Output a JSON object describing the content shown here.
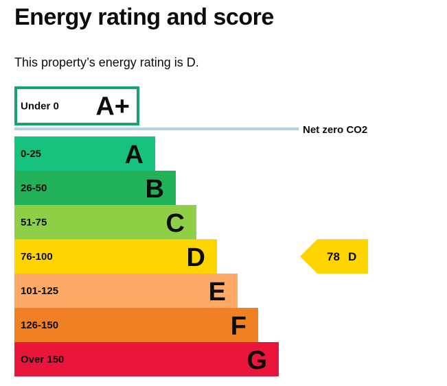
{
  "header": {
    "title": "Energy rating and score",
    "summary": "This property’s energy rating is D."
  },
  "chart_data": {
    "type": "bar",
    "title": "Energy rating and score",
    "bands": [
      {
        "range": "Under 0",
        "letter": "A+",
        "color": "#17a370",
        "outlined": true
      },
      {
        "range": "0-25",
        "letter": "A",
        "color": "#17c27e"
      },
      {
        "range": "26-50",
        "letter": "B",
        "color": "#22b25a"
      },
      {
        "range": "51-75",
        "letter": "C",
        "color": "#8fcf48"
      },
      {
        "range": "76-100",
        "letter": "D",
        "color": "#ffd500"
      },
      {
        "range": "101-125",
        "letter": "E",
        "color": "#fcaa65"
      },
      {
        "range": "126-150",
        "letter": "F",
        "color": "#ef8023"
      },
      {
        "range": "Over 150",
        "letter": "G",
        "color": "#e9153b"
      }
    ],
    "net_zero": {
      "label": "Net zero CO2",
      "color": "#b1d3e4"
    },
    "current": {
      "score": 78,
      "letter": "D",
      "color": "#ffd500"
    }
  }
}
